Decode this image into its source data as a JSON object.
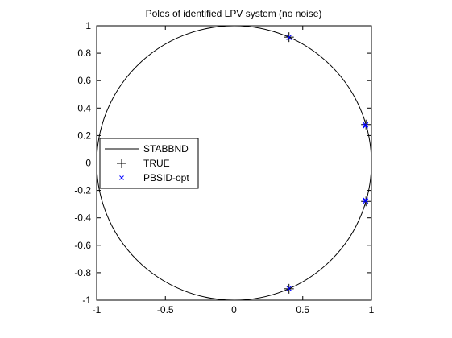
{
  "chart_data": {
    "type": "scatter",
    "title": "Poles of identified LPV system (no noise)",
    "xlabel": "",
    "ylabel": "",
    "xlim": [
      -1,
      1
    ],
    "ylim": [
      -1,
      1
    ],
    "x_ticks": [
      -1,
      -0.5,
      0,
      0.5,
      1
    ],
    "x_tick_labels": [
      "-1",
      "-0.5",
      "0",
      "0.5",
      "1"
    ],
    "y_ticks": [
      1,
      0.8,
      0.6,
      0.4,
      0.2,
      0,
      -0.2,
      -0.4,
      -0.6,
      -0.8,
      -1
    ],
    "y_tick_labels": [
      "1",
      "0.8",
      "0.6",
      "0.4",
      "0.2",
      "0",
      "-0.2",
      "-0.4",
      "-0.6",
      "-0.8",
      "-1"
    ],
    "grid": false,
    "legend_position": "middle-left",
    "series": [
      {
        "name": "STABBND",
        "kind": "line",
        "shape": "unit-circle",
        "color": "#000000"
      },
      {
        "name": "TRUE",
        "kind": "marker",
        "marker": "plus",
        "color": "#000000",
        "points": [
          {
            "x": 0.4,
            "y": 0.917
          },
          {
            "x": 0.4,
            "y": -0.917
          },
          {
            "x": 0.96,
            "y": 0.28
          },
          {
            "x": 0.96,
            "y": -0.28
          },
          {
            "x": 1.0,
            "y": 0.0
          }
        ]
      },
      {
        "name": "PBSID-opt",
        "kind": "marker",
        "marker": "x",
        "color": "#0000ff",
        "points": [
          {
            "x": 0.4,
            "y": 0.915
          },
          {
            "x": 0.4,
            "y": -0.915
          },
          {
            "x": 0.958,
            "y": 0.278
          },
          {
            "x": 0.958,
            "y": -0.278
          },
          {
            "x": 0.955,
            "y": 0.27
          },
          {
            "x": 0.955,
            "y": -0.27
          }
        ]
      }
    ]
  }
}
